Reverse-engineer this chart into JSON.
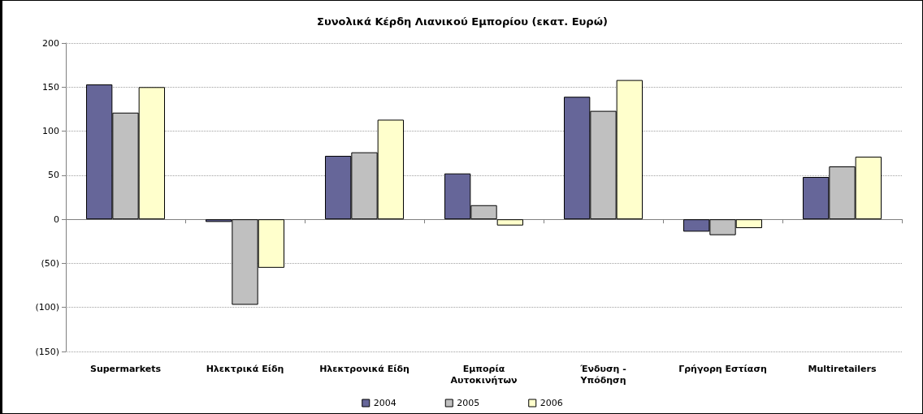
{
  "chart_data": {
    "type": "bar",
    "title": "Συνολικά Κέρδη Λιανικού Εμπορίου (εκατ. Ευρώ)",
    "categories": [
      "Supermarkets",
      "Ηλεκτρικά Είδη",
      "Ηλεκτρονικά Είδη",
      "Εμπορία\nΑυτοκινήτων",
      "Ένδυση -\nΥπόδηση",
      "Γρήγορη Εστίαση",
      "Multiretailers"
    ],
    "series": [
      {
        "name": "2004",
        "color": "#666699",
        "values": [
          153,
          -3,
          72,
          52,
          139,
          -14,
          48
        ]
      },
      {
        "name": "2005",
        "color": "#c0c0c0",
        "values": [
          121,
          -97,
          76,
          16,
          123,
          -18,
          60
        ]
      },
      {
        "name": "2006",
        "color": "#ffffcc",
        "values": [
          150,
          -55,
          113,
          -7,
          158,
          -10,
          71
        ]
      }
    ],
    "ylim": [
      -150,
      200
    ],
    "yticks": [
      {
        "value": -150,
        "label": "(150)"
      },
      {
        "value": -100,
        "label": "(100)"
      },
      {
        "value": -50,
        "label": "(50)"
      },
      0,
      50,
      100,
      150,
      200
    ],
    "grid": "y",
    "legend": "bottom"
  }
}
